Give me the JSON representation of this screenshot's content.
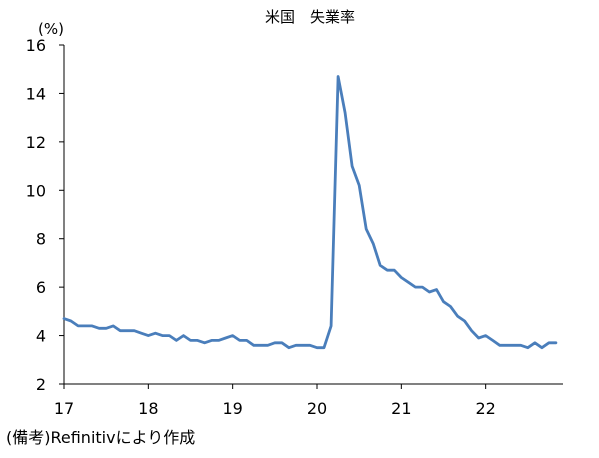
{
  "chart_data": {
    "type": "line",
    "title": "米国　失業率",
    "unit_label": "(%)",
    "ylabel": "",
    "xlabel": "",
    "ylim": [
      2,
      16
    ],
    "yticks": [
      2,
      4,
      6,
      8,
      10,
      12,
      14,
      16
    ],
    "xlim": [
      2017.0,
      2022.917
    ],
    "xtick_values": [
      2017,
      2018,
      2019,
      2020,
      2021,
      2022
    ],
    "xtick_labels": [
      "17",
      "18",
      "19",
      "20",
      "21",
      "22"
    ],
    "grid": false,
    "legend": "none",
    "series": [
      {
        "color": "#4a7ebb",
        "x": [
          "2017-01",
          "2017-02",
          "2017-03",
          "2017-04",
          "2017-05",
          "2017-06",
          "2017-07",
          "2017-08",
          "2017-09",
          "2017-10",
          "2017-11",
          "2017-12",
          "2018-01",
          "2018-02",
          "2018-03",
          "2018-04",
          "2018-05",
          "2018-06",
          "2018-07",
          "2018-08",
          "2018-09",
          "2018-10",
          "2018-11",
          "2018-12",
          "2019-01",
          "2019-02",
          "2019-03",
          "2019-04",
          "2019-05",
          "2019-06",
          "2019-07",
          "2019-08",
          "2019-09",
          "2019-10",
          "2019-11",
          "2019-12",
          "2020-01",
          "2020-02",
          "2020-03",
          "2020-04",
          "2020-05",
          "2020-06",
          "2020-07",
          "2020-08",
          "2020-09",
          "2020-10",
          "2020-11",
          "2020-12",
          "2021-01",
          "2021-02",
          "2021-03",
          "2021-04",
          "2021-05",
          "2021-06",
          "2021-07",
          "2021-08",
          "2021-09",
          "2021-10",
          "2021-11",
          "2021-12",
          "2022-01",
          "2022-02",
          "2022-03",
          "2022-04",
          "2022-05",
          "2022-06",
          "2022-07",
          "2022-08",
          "2022-09",
          "2022-10",
          "2022-11"
        ],
        "y": [
          4.7,
          4.6,
          4.4,
          4.4,
          4.4,
          4.3,
          4.3,
          4.4,
          4.2,
          4.2,
          4.2,
          4.1,
          4.0,
          4.1,
          4.0,
          4.0,
          3.8,
          4.0,
          3.8,
          3.8,
          3.7,
          3.8,
          3.8,
          3.9,
          4.0,
          3.8,
          3.8,
          3.6,
          3.6,
          3.6,
          3.7,
          3.7,
          3.5,
          3.6,
          3.6,
          3.6,
          3.5,
          3.5,
          4.4,
          14.7,
          13.2,
          11.0,
          10.2,
          8.4,
          7.8,
          6.9,
          6.7,
          6.7,
          6.4,
          6.2,
          6.0,
          6.0,
          5.8,
          5.9,
          5.4,
          5.2,
          4.8,
          4.6,
          4.2,
          3.9,
          4.0,
          3.8,
          3.6,
          3.6,
          3.6,
          3.6,
          3.5,
          3.7,
          3.5,
          3.7,
          3.7
        ]
      }
    ]
  },
  "source_note": "(備考)Refinitivにより作成"
}
